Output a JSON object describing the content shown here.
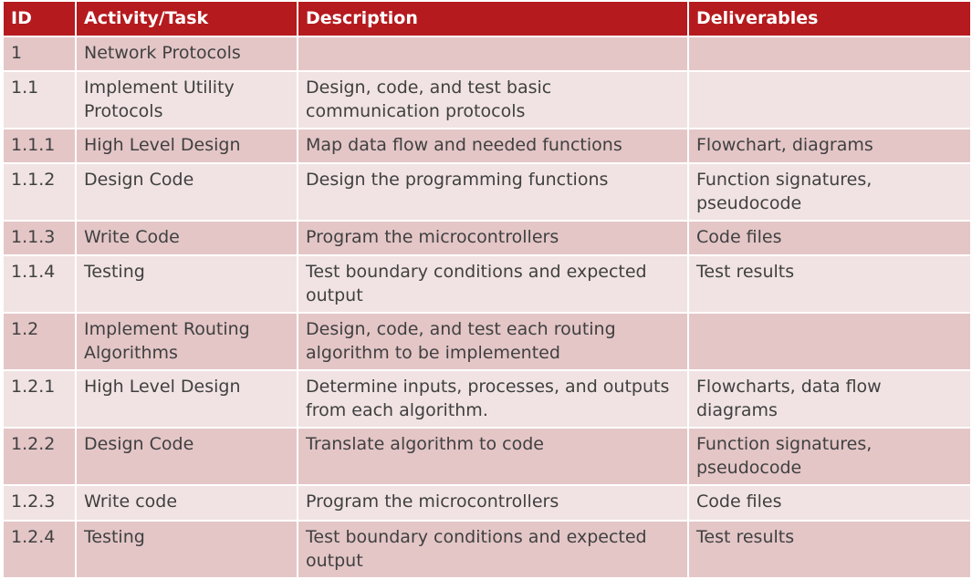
{
  "table": {
    "headers": [
      "ID",
      "Activity/Task",
      "Description",
      "Deliverables"
    ],
    "rows": [
      {
        "id": "1",
        "task": "Network Protocols",
        "description": "",
        "deliverables": ""
      },
      {
        "id": "1.1",
        "task": "Implement Utility Protocols",
        "description": "Design, code, and test basic communication protocols",
        "deliverables": ""
      },
      {
        "id": "1.1.1",
        "task": "High Level Design",
        "description": "Map data flow and needed functions",
        "deliverables": "Flowchart, diagrams"
      },
      {
        "id": "1.1.2",
        "task": "Design Code",
        "description": "Design the programming functions",
        "deliverables": "Function signatures, pseudocode"
      },
      {
        "id": "1.1.3",
        "task": "Write Code",
        "description": "Program the microcontrollers",
        "deliverables": "Code files"
      },
      {
        "id": "1.1.4",
        "task": "Testing",
        "description": "Test boundary conditions and expected output",
        "deliverables": "Test results"
      },
      {
        "id": "1.2",
        "task": "Implement Routing Algorithms",
        "description": "Design, code, and test each routing algorithm to be implemented",
        "deliverables": ""
      },
      {
        "id": "1.2.1",
        "task": "High Level Design",
        "description": "Determine inputs, processes, and outputs from each algorithm.",
        "deliverables": "Flowcharts, data flow diagrams"
      },
      {
        "id": "1.2.2",
        "task": "Design Code",
        "description": "Translate algorithm to code",
        "deliverables": "Function signatures, pseudocode"
      },
      {
        "id": "1.2.3",
        "task": "Write code",
        "description": "Program the microcontrollers",
        "deliverables": "Code files"
      },
      {
        "id": "1.2.4",
        "task": "Testing",
        "description": "Test boundary conditions and expected output",
        "deliverables": "Test results"
      }
    ]
  },
  "colors": {
    "header": "#b51a1e",
    "row_dark": "#e4c6c7",
    "row_light": "#f1e3e3",
    "text": "#404040"
  }
}
